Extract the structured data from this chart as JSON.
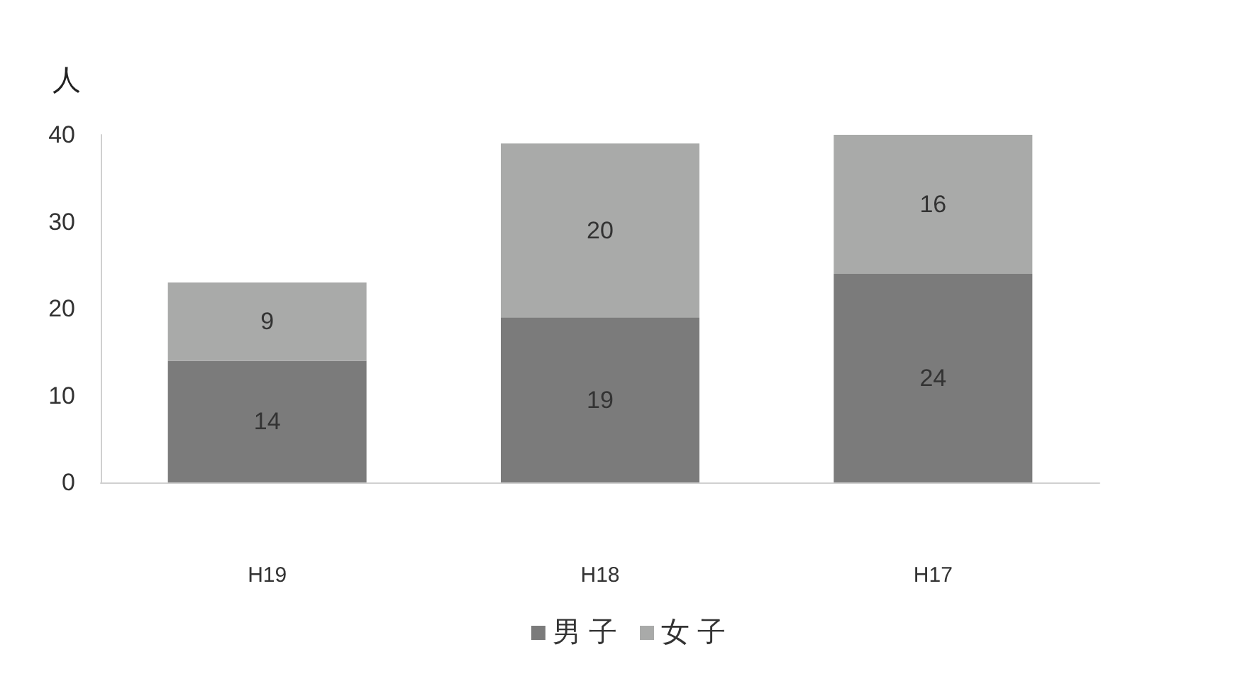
{
  "chart_data": {
    "type": "bar",
    "ylabel": "人",
    "categories": [
      "H19",
      "H18",
      "H17"
    ],
    "series": [
      {
        "name": "男 子",
        "color": "#7b7b7b",
        "values": [
          14,
          19,
          24
        ]
      },
      {
        "name": "女 子",
        "color": "#a9aaa9",
        "values": [
          9,
          20,
          16
        ]
      }
    ],
    "stacked": true,
    "ylim": [
      0,
      40
    ],
    "yticks": [
      0,
      10,
      20,
      30,
      40
    ],
    "grid": false,
    "legend": "bottom",
    "data_labels": true
  }
}
